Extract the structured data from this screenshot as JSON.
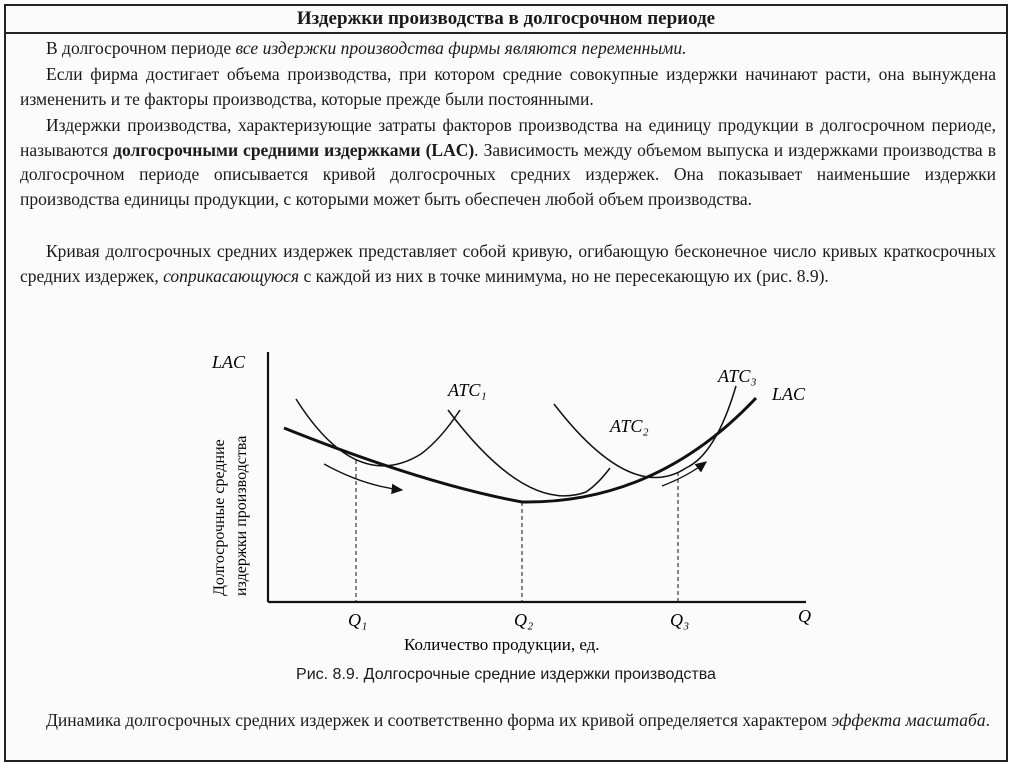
{
  "header": {
    "title": "Издержки производства в долгосрочном периоде"
  },
  "p1": {
    "a": "В долгосрочном периоде ",
    "b": "все издержки производства фирмы являются переменными."
  },
  "p2": "Если фирма достигает объема производства, при котором средние совокупные издержки начинают расти, она вынуждена измененить и те факторы производства, которые прежде были постоянными.",
  "p3": {
    "a": "Издержки производства, характеризующие затраты факторов производства на единицу продукции в долгосрочном периоде, называются ",
    "b": "долгосрочными средними издержками (LAC)",
    "c": ". Зависимость между объемом выпуска и издержками производства в долгосрочном периоде описывается кривой долгосрочных средних издержек. Она показывает наименьшие издержки производства единицы продукции, с которыми может быть обеспечен любой объем производства."
  },
  "p4": {
    "a": "Кривая долгосрочных средних издержек представляет собой кривую, огибающую бесконечное число кривых краткосрочных средних издержек, ",
    "b": "соприкасающуюся",
    "c": " с каждой из них в точке минимума, но не пересекающую их (рис. 8.9)."
  },
  "figure": {
    "y_axis_top": "LAC",
    "y_axis_label_1": "Долгосрочные средние",
    "y_axis_label_2": "издержки производства",
    "x_axis_end": "Q",
    "x_axis_label": "Количество продукции, ед.",
    "ticks": [
      "Q₁",
      "Q₂",
      "Q₃"
    ],
    "curves": [
      "ATC₁",
      "ATC₂",
      "ATC₃",
      "LAC"
    ],
    "caption": "Рис. 8.9. Долгосрочные средние издержки производства"
  },
  "p5": {
    "a": "Динамика долгосрочных средних издержек и соответственно форма их кривой определяется характером ",
    "b": "эффекта масштаба",
    "c": "."
  }
}
